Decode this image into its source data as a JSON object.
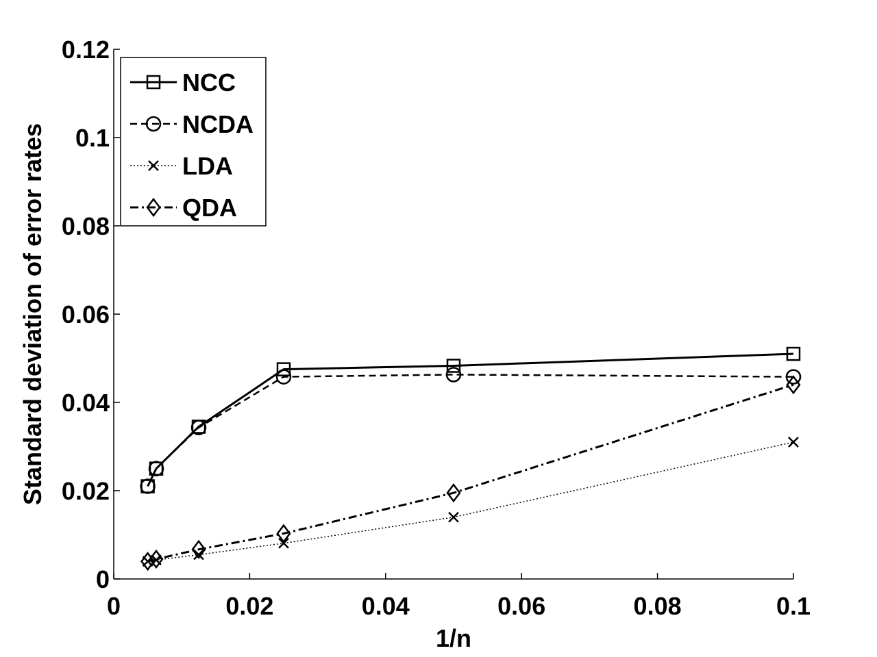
{
  "chart_data": {
    "type": "line",
    "title": "",
    "xlabel": "1/n",
    "ylabel": "Standard deviation of  error rates",
    "xlim": [
      0,
      0.1
    ],
    "ylim": [
      0,
      0.12
    ],
    "xticks": [
      0,
      0.02,
      0.04,
      0.06,
      0.08,
      0.1
    ],
    "xtick_labels": [
      "0",
      "0.02",
      "0.04",
      "0.06",
      "0.08",
      "0.1"
    ],
    "yticks": [
      0,
      0.02,
      0.04,
      0.06,
      0.08,
      0.1,
      0.12
    ],
    "ytick_labels": [
      "0",
      "0.02",
      "0.04",
      "0.06",
      "0.08",
      "0.1",
      "0.12"
    ],
    "grid": false,
    "legend_position": "top-left",
    "x": [
      0.005,
      0.00625,
      0.0125,
      0.025,
      0.05,
      0.1
    ],
    "series": [
      {
        "name": "NCC",
        "marker": "square",
        "linestyle": "solid",
        "values": [
          0.021,
          0.025,
          0.0345,
          0.0475,
          0.0483,
          0.051
        ]
      },
      {
        "name": "NCDA",
        "marker": "circle",
        "linestyle": "dashed",
        "values": [
          0.021,
          0.025,
          0.0343,
          0.0458,
          0.0463,
          0.0458
        ]
      },
      {
        "name": "LDA",
        "marker": "x",
        "linestyle": "dotted",
        "values": [
          0.004,
          0.0043,
          0.0055,
          0.0081,
          0.014,
          0.031
        ]
      },
      {
        "name": "QDA",
        "marker": "diamond",
        "linestyle": "dashdot",
        "values": [
          0.004,
          0.0045,
          0.0067,
          0.0103,
          0.0195,
          0.044
        ]
      }
    ]
  }
}
